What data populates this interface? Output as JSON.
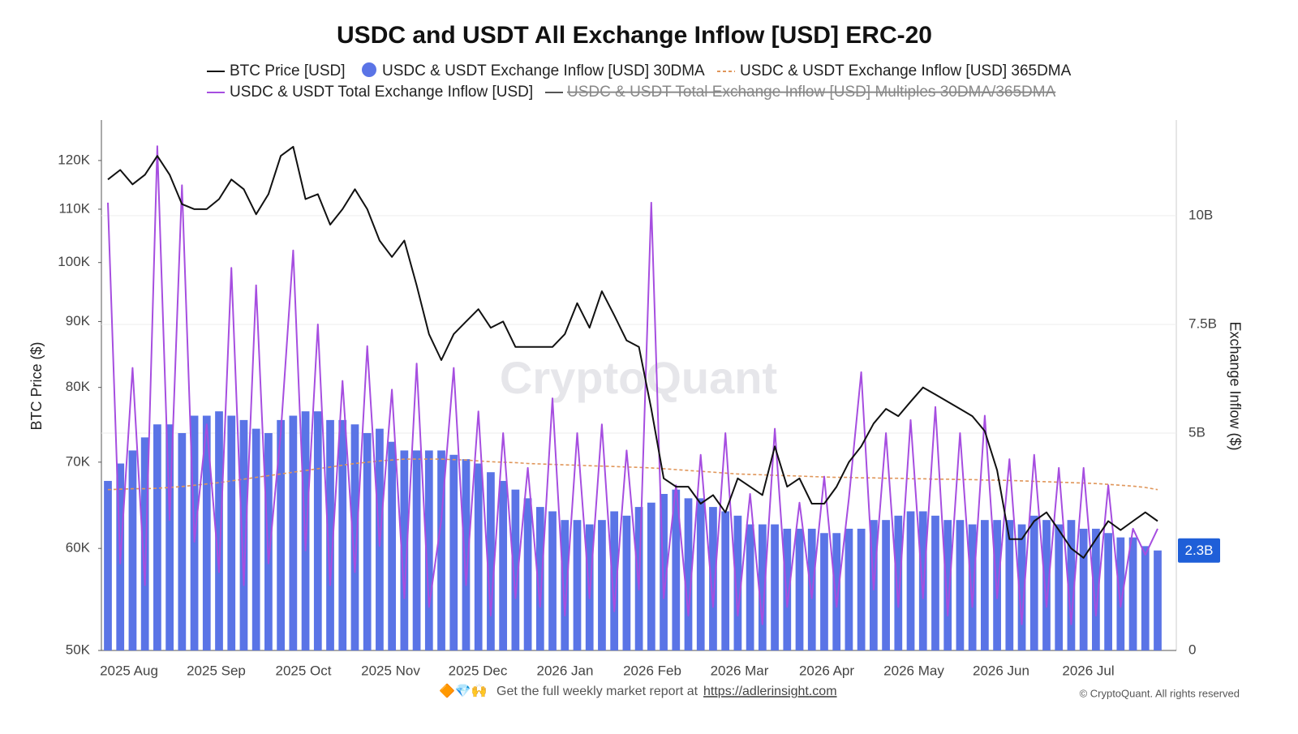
{
  "chart_data": {
    "type": "combo",
    "title": "USDC and USDT All Exchange Inflow [USD] ERC-20",
    "ylabel": "BTC Price ($)",
    "y2label": "Exchange Inflow ($)",
    "watermark": "CryptoQuant",
    "ylog": true,
    "ylim": [
      50000,
      129000
    ],
    "yticks": [
      {
        "value": 50000,
        "label": "50K"
      },
      {
        "value": 60000,
        "label": "60K"
      },
      {
        "value": 70000,
        "label": "70K"
      },
      {
        "value": 80000,
        "label": "80K"
      },
      {
        "value": 90000,
        "label": "90K"
      },
      {
        "value": 100000,
        "label": "100K"
      },
      {
        "value": 110000,
        "label": "110K"
      },
      {
        "value": 120000,
        "label": "120K"
      }
    ],
    "y2lim": [
      0,
      12200000000
    ],
    "y2ticks": [
      0,
      {
        "value": 5000000000.0,
        "label": "5B"
      },
      {
        "value": 7500000000.0,
        "label": "7.5B"
      },
      {
        "value": 10000000000.0,
        "label": "10B"
      }
    ],
    "grid": true,
    "x_axis_labels": [
      "2025 Aug",
      "2025 Sep",
      "2025 Oct",
      "2025 Nov",
      "2025 Dec",
      "2026 Jan",
      "2026 Feb",
      "2026 Mar",
      "2026 Apr",
      "2026 May",
      "2026 Jun",
      "2026 Jul"
    ],
    "current_value": {
      "value": 2300000000.0,
      "label": "2.3B"
    },
    "series": [
      {
        "name": "BTC Price [USD]",
        "kind": "line",
        "axis": "y",
        "color": "#111111",
        "values": [
          116000.0,
          118000.0,
          115000.0,
          117000.0,
          121000.0,
          117000.0,
          111000.0,
          110000.0,
          110000.0,
          112000.0,
          116000.0,
          114000.0,
          109000.0,
          113000.0,
          121000.0,
          123000.0,
          112000.0,
          113000.0,
          107000.0,
          110000.0,
          114000.0,
          110000.0,
          104000.0,
          101000.0,
          104000.0,
          96000.0,
          88000.0,
          84000.0,
          88000.0,
          90000.0,
          92000.0,
          89000.0,
          90000.0,
          86000.0,
          86000.0,
          86000.0,
          86000.0,
          88000.0,
          93000.0,
          89000.0,
          95000.0,
          91000.0,
          87000.0,
          86000.0,
          77000.0,
          68000.0,
          67000.0,
          67000.0,
          65000.0,
          66000.0,
          64000.0,
          68000.0,
          67000.0,
          66000.0,
          72000.0,
          67000.0,
          68000.0,
          65000.0,
          65000.0,
          67000.0,
          70000.0,
          72000.0,
          75000.0,
          77000.0,
          76000.0,
          78000.0,
          80000.0,
          79000.0,
          78000.0,
          77000.0,
          76000.0,
          74000.0,
          69000.0,
          61000.0,
          61000.0,
          63000.0,
          64000.0,
          62000.0,
          60000.0,
          59000.0,
          61000.0,
          63000.0,
          62000.0,
          63000.0,
          64000.0,
          63000.0
        ]
      },
      {
        "name": "USDC & USDT Exchange Inflow [USD] 30DMA",
        "kind": "bar",
        "axis": "y2",
        "color": "#5a74e6",
        "values": [
          3900000000.0,
          4300000000.0,
          4600000000.0,
          4900000000.0,
          5200000000.0,
          5200000000.0,
          5000000000.0,
          5400000000.0,
          5400000000.0,
          5500000000.0,
          5400000000.0,
          5300000000.0,
          5100000000.0,
          5000000000.0,
          5300000000.0,
          5400000000.0,
          5500000000.0,
          5500000000.0,
          5300000000.0,
          5300000000.0,
          5200000000.0,
          5000000000.0,
          5100000000.0,
          4800000000.0,
          4600000000.0,
          4600000000.0,
          4600000000.0,
          4600000000.0,
          4500000000.0,
          4400000000.0,
          4300000000.0,
          4100000000.0,
          3900000000.0,
          3700000000.0,
          3500000000.0,
          3300000000.0,
          3200000000.0,
          3000000000.0,
          3000000000.0,
          2900000000.0,
          3000000000.0,
          3200000000.0,
          3100000000.0,
          3300000000.0,
          3400000000.0,
          3600000000.0,
          3700000000.0,
          3500000000.0,
          3500000000.0,
          3300000000.0,
          3200000000.0,
          3100000000.0,
          2900000000.0,
          2900000000.0,
          2900000000.0,
          2800000000.0,
          2800000000.0,
          2800000000.0,
          2700000000.0,
          2700000000.0,
          2800000000.0,
          2800000000.0,
          3000000000.0,
          3000000000.0,
          3100000000.0,
          3200000000.0,
          3200000000.0,
          3100000000.0,
          3000000000.0,
          3000000000.0,
          2900000000.0,
          3000000000.0,
          3000000000.0,
          3000000000.0,
          2900000000.0,
          3100000000.0,
          3000000000.0,
          2900000000.0,
          3000000000.0,
          2800000000.0,
          2800000000.0,
          2700000000.0,
          2600000000.0,
          2600000000.0,
          2400000000.0,
          2300000000.0
        ]
      },
      {
        "name": "USDC & USDT Exchange Inflow [USD] 365DMA",
        "kind": "line",
        "dash": true,
        "axis": "y2",
        "color": "#e0965a",
        "values": [
          3700000000.0,
          3710000000.0,
          3720000000.0,
          3720000000.0,
          3730000000.0,
          3750000000.0,
          3770000000.0,
          3800000000.0,
          3830000000.0,
          3860000000.0,
          3900000000.0,
          3940000000.0,
          3980000000.0,
          4020000000.0,
          4060000000.0,
          4100000000.0,
          4140000000.0,
          4180000000.0,
          4220000000.0,
          4260000000.0,
          4300000000.0,
          4330000000.0,
          4360000000.0,
          4380000000.0,
          4400000000.0,
          4400000000.0,
          4400000000.0,
          4400000000.0,
          4390000000.0,
          4380000000.0,
          4360000000.0,
          4340000000.0,
          4330000000.0,
          4320000000.0,
          4300000000.0,
          4290000000.0,
          4280000000.0,
          4270000000.0,
          4260000000.0,
          4250000000.0,
          4240000000.0,
          4230000000.0,
          4220000000.0,
          4210000000.0,
          4200000000.0,
          4180000000.0,
          4160000000.0,
          4140000000.0,
          4120000000.0,
          4100000000.0,
          4080000000.0,
          4060000000.0,
          4050000000.0,
          4040000000.0,
          4030000000.0,
          4020000000.0,
          4010000000.0,
          4000000000.0,
          3990000000.0,
          3980000000.0,
          3980000000.0,
          3970000000.0,
          3970000000.0,
          3960000000.0,
          3960000000.0,
          3950000000.0,
          3950000000.0,
          3940000000.0,
          3940000000.0,
          3930000000.0,
          3930000000.0,
          3920000000.0,
          3920000000.0,
          3910000000.0,
          3900000000.0,
          3890000000.0,
          3880000000.0,
          3870000000.0,
          3860000000.0,
          3850000000.0,
          3840000000.0,
          3820000000.0,
          3800000000.0,
          3780000000.0,
          3750000000.0,
          3700000000.0
        ]
      },
      {
        "name": "USDC & USDT Total Exchange Inflow [USD]",
        "kind": "line",
        "axis": "y2",
        "color": "#a64ee0",
        "values": [
          10300000000.0,
          2000000000.0,
          6500000000.0,
          1500000000.0,
          11600000000.0,
          3000000000.0,
          10700000000.0,
          2500000000.0,
          5200000000.0,
          1800000000.0,
          8800000000.0,
          1500000000.0,
          8400000000.0,
          2000000000.0,
          5000000000.0,
          9200000000.0,
          2300000000.0,
          7500000000.0,
          1500000000.0,
          6200000000.0,
          1800000000.0,
          7000000000.0,
          2400000000.0,
          6000000000.0,
          1200000000.0,
          6600000000.0,
          1000000000.0,
          3000000000.0,
          6500000000.0,
          1500000000.0,
          5500000000.0,
          800000000.0,
          5000000000.0,
          1200000000.0,
          4200000000.0,
          1000000000.0,
          5800000000.0,
          800000000.0,
          5000000000.0,
          1200000000.0,
          5200000000.0,
          900000000.0,
          4600000000.0,
          1400000000.0,
          10300000000.0,
          1200000000.0,
          3800000000.0,
          800000000.0,
          4500000000.0,
          1000000000.0,
          5000000000.0,
          800000000.0,
          3600000000.0,
          600000000.0,
          5100000000.0,
          1000000000.0,
          3400000000.0,
          1200000000.0,
          4000000000.0,
          1000000000.0,
          3500000000.0,
          6400000000.0,
          1400000000.0,
          5000000000.0,
          1000000000.0,
          5300000000.0,
          1200000000.0,
          5600000000.0,
          800000000.0,
          5000000000.0,
          1000000000.0,
          5400000000.0,
          1200000000.0,
          4400000000.0,
          600000000.0,
          4500000000.0,
          1000000000.0,
          4200000000.0,
          600000000.0,
          4200000000.0,
          800000000.0,
          3800000000.0,
          1000000000.0,
          2800000000.0,
          2200000000.0,
          2800000000.0
        ]
      }
    ],
    "legend_hidden": {
      "name": "USDC & USDT Total Exchange Inflow [USD] Multiples 30DMA/365DMA",
      "color": "#555555"
    },
    "footer": {
      "emoji": "🔶💎🙌",
      "text": "Get the full weekly market report at",
      "link": "https://adlerinsight.com"
    },
    "copyright": "© CryptoQuant. All rights reserved"
  }
}
